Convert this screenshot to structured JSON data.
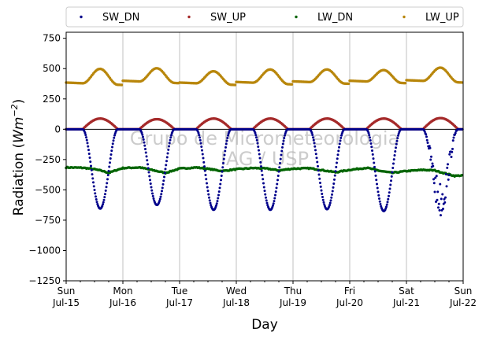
{
  "chart_data": {
    "type": "scatter",
    "xlabel": "Day",
    "ylabel_prefix": "Radiation (",
    "ylabel_unit_base": "Wm",
    "ylabel_unit_exp": "−2",
    "ylabel_suffix": ")",
    "xlim": [
      0,
      7
    ],
    "ylim": [
      -1250,
      800
    ],
    "yticks": [
      -1250,
      -1000,
      -750,
      -500,
      -250,
      0,
      250,
      500,
      750
    ],
    "ytick_labels": [
      "−1250",
      "−1000",
      "−750",
      "−500",
      "−250",
      "0",
      "250",
      "500",
      "750"
    ],
    "xticks": [
      {
        "x": 0,
        "day": "Sun",
        "date": "Jul-15"
      },
      {
        "x": 1,
        "day": "Mon",
        "date": "Jul-16"
      },
      {
        "x": 2,
        "day": "Tue",
        "date": "Jul-17"
      },
      {
        "x": 3,
        "day": "Wed",
        "date": "Jul-18"
      },
      {
        "x": 4,
        "day": "Thu",
        "date": "Jul-19"
      },
      {
        "x": 5,
        "day": "Fri",
        "date": "Jul-20"
      },
      {
        "x": 6,
        "day": "Sat",
        "date": "Jul-21"
      },
      {
        "x": 7,
        "day": "Sun",
        "date": "Jul-22"
      }
    ],
    "grid": "vertical",
    "legend_position": "top",
    "watermark": [
      "Grupo de Micrometeorologia",
      "IAG / USP"
    ],
    "series": [
      {
        "name": "SW_DN",
        "color": "#00008b",
        "daily_min": [
          -655,
          -625,
          -665,
          -665,
          -660,
          -675,
          -700
        ],
        "shape": "noon-trough",
        "noise": [
          0,
          0,
          0,
          0,
          0,
          0,
          1
        ]
      },
      {
        "name": "SW_UP",
        "color": "#a52a2a",
        "daily_max": [
          88,
          83,
          88,
          88,
          88,
          88,
          92
        ],
        "shape": "noon-peak"
      },
      {
        "name": "LW_DN",
        "color": "#006400",
        "points": [
          [
            0,
            -315
          ],
          [
            0.3,
            -318
          ],
          [
            0.5,
            -330
          ],
          [
            0.65,
            -345
          ],
          [
            0.75,
            -360
          ],
          [
            0.9,
            -335
          ],
          [
            1.0,
            -320
          ],
          [
            1.3,
            -315
          ],
          [
            1.55,
            -340
          ],
          [
            1.75,
            -360
          ],
          [
            2.0,
            -325
          ],
          [
            2.3,
            -315
          ],
          [
            2.55,
            -330
          ],
          [
            2.75,
            -345
          ],
          [
            3.0,
            -330
          ],
          [
            3.3,
            -320
          ],
          [
            3.55,
            -325
          ],
          [
            3.75,
            -340
          ],
          [
            4.0,
            -325
          ],
          [
            4.3,
            -322
          ],
          [
            4.55,
            -340
          ],
          [
            4.75,
            -355
          ],
          [
            5.0,
            -335
          ],
          [
            5.3,
            -318
          ],
          [
            5.55,
            -345
          ],
          [
            5.75,
            -360
          ],
          [
            6.0,
            -345
          ],
          [
            6.3,
            -335
          ],
          [
            6.5,
            -340
          ],
          [
            6.65,
            -360
          ],
          [
            6.85,
            -385
          ],
          [
            7.0,
            -380
          ]
        ]
      },
      {
        "name": "LW_UP",
        "color": "#b8860b",
        "daily_base": [
          385,
          400,
          385,
          390,
          395,
          400,
          405
        ],
        "daily_max": [
          510,
          515,
          490,
          505,
          505,
          500,
          520
        ]
      }
    ]
  }
}
